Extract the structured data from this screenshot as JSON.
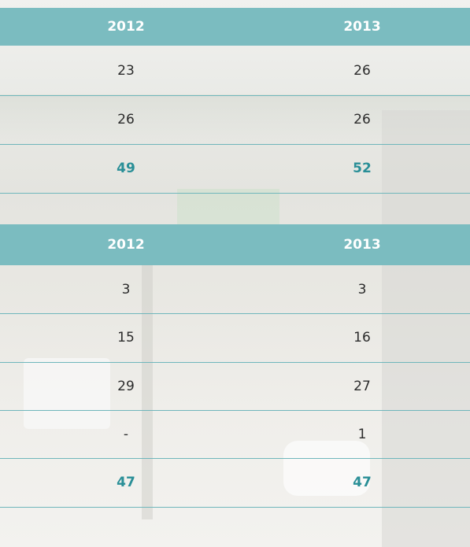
{
  "tables": [
    {
      "header": [
        "2012",
        "2013"
      ],
      "rows": [
        [
          "23",
          "26"
        ],
        [
          "26",
          "26"
        ]
      ],
      "total": [
        "49",
        "52"
      ]
    },
    {
      "header": [
        "2012",
        "2013"
      ],
      "rows": [
        [
          "3",
          "3"
        ],
        [
          "15",
          "16"
        ],
        [
          "29",
          "27"
        ],
        [
          "-",
          "1"
        ]
      ],
      "total": [
        "47",
        "47"
      ]
    }
  ]
}
